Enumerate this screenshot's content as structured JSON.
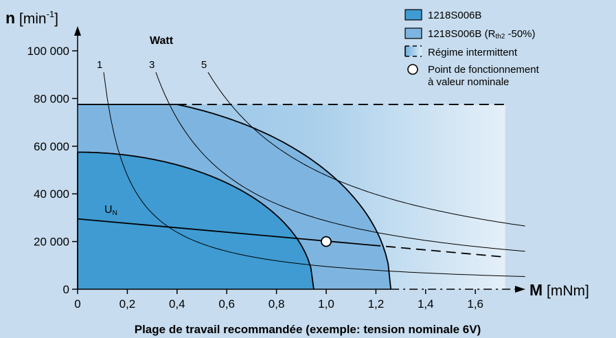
{
  "chart_data": {
    "type": "line",
    "title": "",
    "caption": "Plage de travail recommandée (exemple: tension nominale 6V)",
    "y_axis": {
      "name": "n",
      "unit_prefix": " [min",
      "unit_sup": "-1",
      "unit_suffix": "]",
      "ylim": [
        0,
        100000
      ],
      "ticks": [
        0,
        20000,
        40000,
        60000,
        80000,
        100000
      ],
      "tick_labels": [
        "0",
        "20 000",
        "40 000",
        "60 000",
        "80 000",
        "100 000"
      ]
    },
    "x_axis": {
      "name": "M",
      "unit": " [mNm]",
      "xlim": [
        0,
        1.7
      ],
      "ticks": [
        0,
        0.2,
        0.4,
        0.6,
        0.8,
        1.0,
        1.2,
        1.4,
        1.6
      ],
      "tick_labels": [
        "0",
        "0,2",
        "0,4",
        "0,6",
        "0,8",
        "1,0",
        "1,2",
        "1,4",
        "1,6"
      ]
    },
    "power_label": "Watt",
    "power_hyperbolas": [
      {
        "label": "1",
        "watt": 1
      },
      {
        "label": "3",
        "watt": 3
      },
      {
        "label": "5",
        "watt": 5
      }
    ],
    "regions": {
      "continuous": {
        "n0": 57500,
        "m_stall": 0.95
      },
      "reduced_rth2": {
        "n_max": 77500,
        "m_stall": 1.26
      },
      "intermittent": {
        "n_max": 77500,
        "m_max": 1.72
      }
    },
    "un_line": {
      "label": "U",
      "label_sub": "N",
      "n0": 29500,
      "slope": -9300,
      "m_solid_end": 1.18,
      "m_end": 1.72
    },
    "operating_point": {
      "m": 1.0,
      "n": 20000
    },
    "legend": [
      {
        "text": "1218S006B",
        "sub": "",
        "suffix": "",
        "swatch": "#3f9bd2"
      },
      {
        "text": "1218S006B (R",
        "sub": "th2",
        "suffix": " -50%)",
        "swatch": "#7eb5e0"
      },
      {
        "text": "Régime intermittent",
        "sub": "",
        "suffix": "",
        "swatch": "dashed"
      },
      {
        "text": "Point de fonctionnement",
        "text2": "à valeur nominale",
        "swatch": "circle"
      }
    ],
    "colors": {
      "background": "#c7dcee",
      "continuous": "#3f9bd2",
      "reduced": "#7eb5e0",
      "intermittent_start": "#93c2e6"
    }
  }
}
